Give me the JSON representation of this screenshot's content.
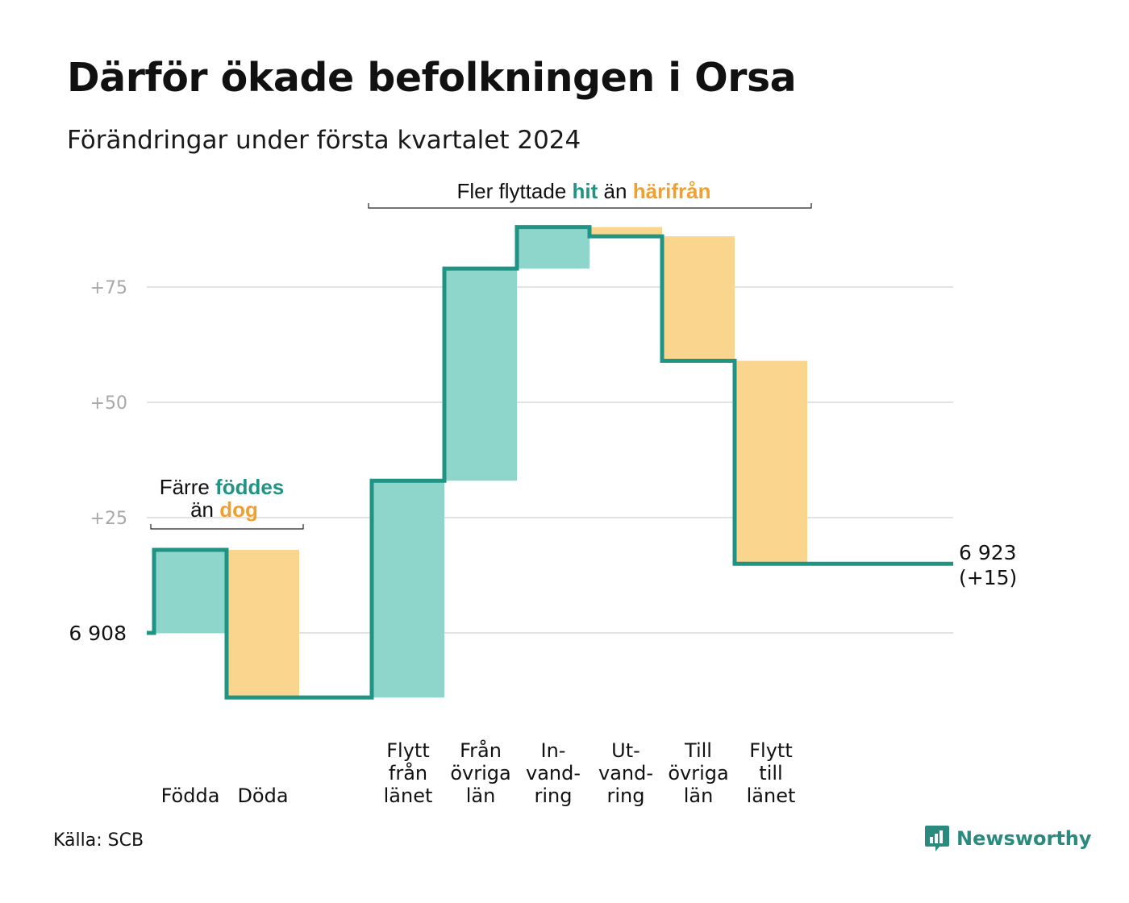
{
  "title": "Därför ökade befolkningen i Orsa",
  "subtitle": "Förändringar under första kvartalet 2024",
  "source": "Källa: SCB",
  "brand": "Newsworthy",
  "colors": {
    "increase": "#8ed5cb",
    "decrease": "#fad58e",
    "line": "#1f9484",
    "orange_text": "#f0a030",
    "grid": "#e3e3e3"
  },
  "annotations": {
    "left": {
      "line1_plain": "Färre",
      "line1_bold": "föddes",
      "line2_plain": "än",
      "line2_bold": "dog"
    },
    "top": {
      "plain1": "Fler flyttade",
      "bold1": "hit",
      "plain2": "än",
      "bold2": "härifrån"
    }
  },
  "chart_data": {
    "type": "waterfall",
    "baseline": 6908,
    "baseline_label": "6  908",
    "end_label_line1": "6 923",
    "end_label_line2": "(+15)",
    "yticks": [
      {
        "value": 25,
        "label": "+25"
      },
      {
        "value": 50,
        "label": "+50"
      },
      {
        "value": 75,
        "label": "+75"
      }
    ],
    "ylim": [
      -14,
      88
    ],
    "steps": [
      {
        "label": [
          "Födda"
        ],
        "change": 18
      },
      {
        "label": [
          "Döda"
        ],
        "change": -32
      },
      {
        "label": [
          "",
          "",
          ""
        ],
        "change": 0
      },
      {
        "label": [
          "Flytt",
          "från",
          "länet"
        ],
        "change": 47
      },
      {
        "label": [
          "Från",
          "övriga",
          "län"
        ],
        "change": 46
      },
      {
        "label": [
          "In-",
          "vand-",
          "ring"
        ],
        "change": 9
      },
      {
        "label": [
          "Ut-",
          "vand-",
          "ring"
        ],
        "change": -2
      },
      {
        "label": [
          "Till",
          "övriga",
          "län"
        ],
        "change": -27
      },
      {
        "label": [
          "Flytt",
          "till",
          "länet"
        ],
        "change": -44
      }
    ],
    "final_change": 15
  }
}
